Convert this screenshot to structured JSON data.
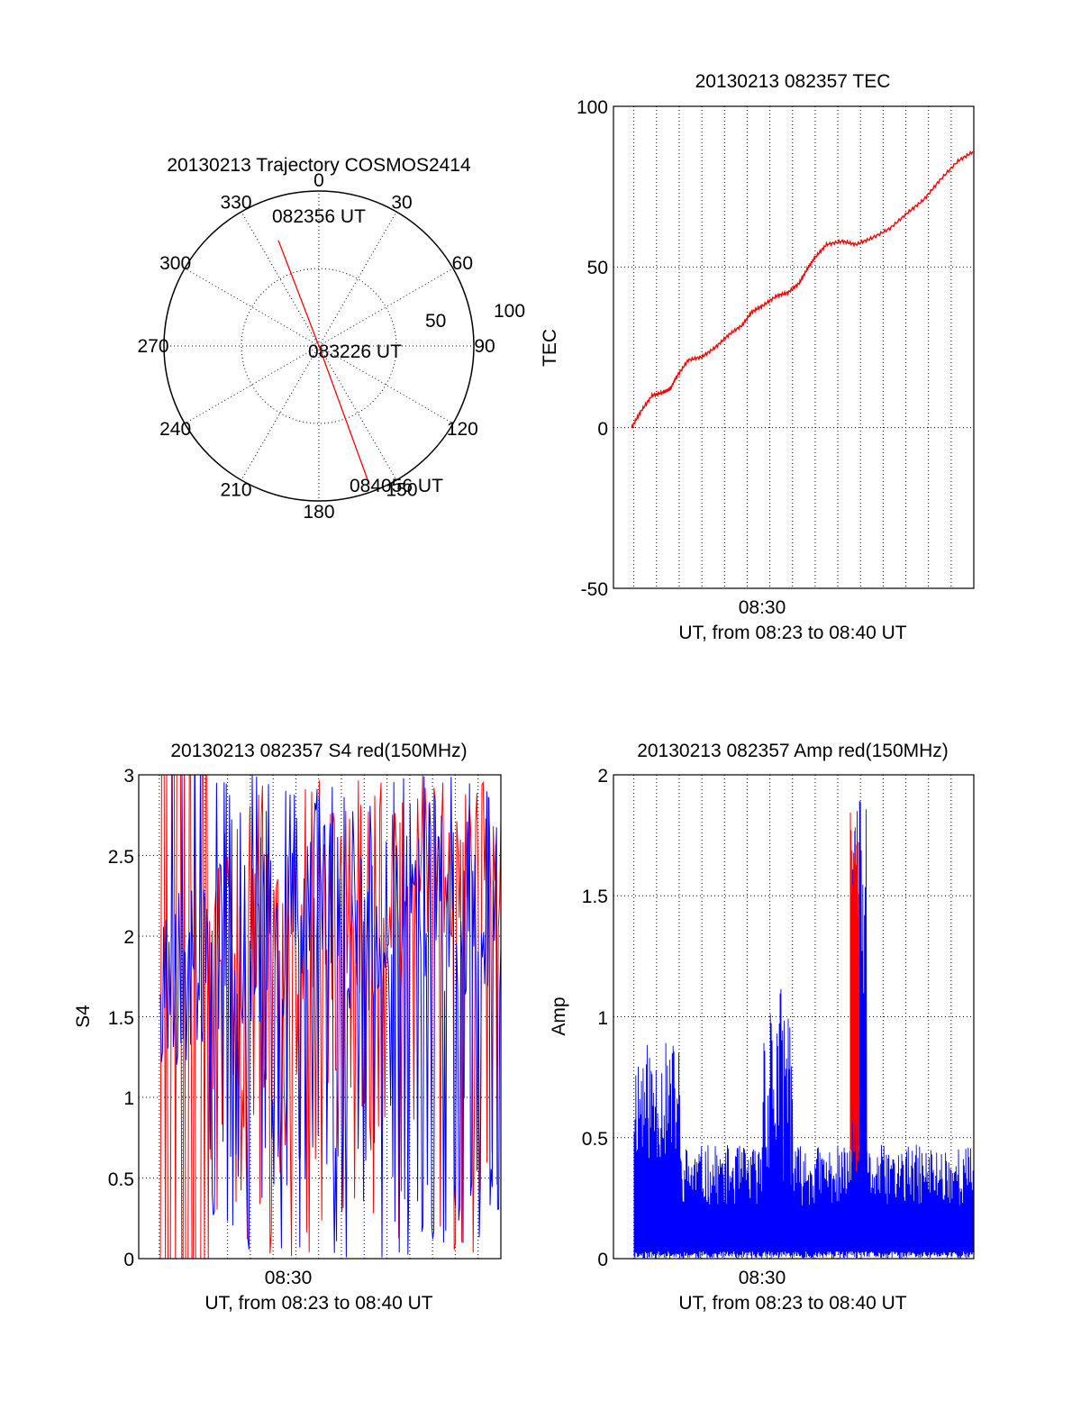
{
  "chart_data": [
    {
      "type": "polar",
      "title": "20130213 Trajectory COSMOS2414",
      "angle_labels": [
        "0",
        "30",
        "60",
        "90",
        "120",
        "150",
        "180",
        "210",
        "240",
        "270",
        "300",
        "330"
      ],
      "radial_labels": [
        "50",
        "100"
      ],
      "radial_range": [
        0,
        100
      ],
      "track": [
        {
          "azimuth": 339,
          "zenith": 73,
          "label": "082356 UT"
        },
        {
          "azimuth": 90,
          "zenith": 0,
          "label": "083226 UT"
        },
        {
          "azimuth": 160,
          "zenith": 95,
          "label": "084056 UT"
        }
      ],
      "line_color": "#ff0000"
    },
    {
      "type": "line",
      "title": "20130213 082357 TEC",
      "ylabel": "TEC",
      "xlabel": "UT, from 08:23 to 08:40 UT",
      "x_tick_labels": [
        "08:30"
      ],
      "y_tick_labels": [
        "100",
        "50",
        "0",
        "-50"
      ],
      "ylim": [
        -50,
        100
      ],
      "xlim_minutes": [
        25.1,
        41.0
      ],
      "grid": true,
      "series": [
        {
          "color": "#ff0000",
          "x": [
            25.9,
            26.3,
            26.8,
            27.3,
            27.6,
            27.9,
            28.4,
            29.0,
            29.6,
            30.2,
            30.8,
            31.2,
            31.7,
            32.3,
            32.8,
            33.3,
            33.7,
            34.0,
            34.5,
            35.2,
            35.8,
            36.5,
            37.3,
            38.1,
            38.8,
            39.5,
            40.3,
            41.0
          ],
          "y": [
            0,
            5,
            10,
            11,
            12,
            16,
            21,
            22,
            25,
            29,
            32,
            36,
            38,
            41,
            42,
            45,
            50,
            53,
            57,
            58,
            57,
            59,
            62,
            67,
            71,
            77,
            83,
            86
          ]
        }
      ]
    },
    {
      "type": "line",
      "title": "20130213 082357 S4 red(150MHz)",
      "ylabel": "S4",
      "xlabel": "UT, from 08:23 to 08:40 UT",
      "x_tick_labels": [
        "08:30"
      ],
      "y_tick_labels": [
        "3",
        "2.5",
        "2",
        "1.5",
        "1",
        "0.5",
        "0"
      ],
      "ylim": [
        0,
        3
      ],
      "xlim_minutes": [
        22.1,
        38.0
      ],
      "grid": true,
      "series": [
        {
          "color": "#ff0000"
        },
        {
          "color": "#0000ff"
        }
      ]
    },
    {
      "type": "line",
      "title": "20130213 082357 Amp red(150MHz)",
      "ylabel": "Amp",
      "xlabel": "UT, from 08:23 to 08:40 UT",
      "x_tick_labels": [
        "08:30"
      ],
      "y_tick_labels": [
        "2",
        "1.5",
        "1",
        "0.5",
        "0"
      ],
      "ylim": [
        0,
        2
      ],
      "xlim_minutes": [
        25.1,
        41.0
      ],
      "grid": true,
      "series": [
        {
          "color": "#ff0000"
        },
        {
          "color": "#0000ff"
        }
      ]
    }
  ]
}
